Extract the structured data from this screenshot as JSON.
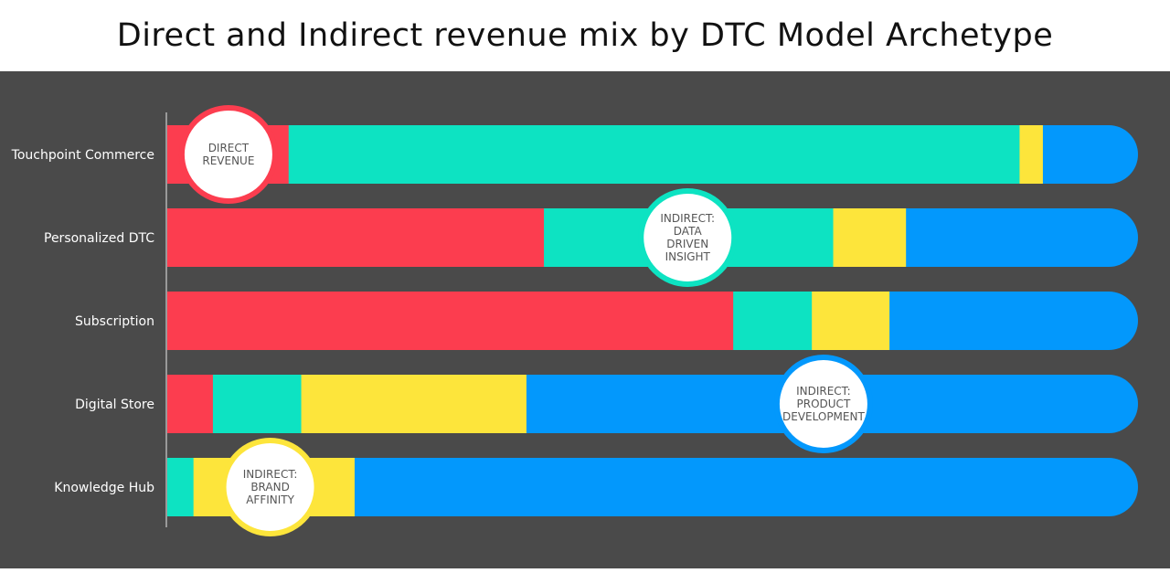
{
  "chart_data": {
    "type": "bar",
    "orientation": "horizontal",
    "stacked": true,
    "title": "Direct and Indirect revenue mix by DTC Model Archetype",
    "categories": [
      "Touchpoint Commerce",
      "Personalized DTC",
      "Subscription",
      "Digital Store",
      "Knowledge Hub"
    ],
    "series": [
      {
        "color": "#fc3d4f",
        "values": [
          12.5,
          38.8,
          58.3,
          4.7,
          0
        ]
      },
      {
        "color": "#0de3c2",
        "values": [
          75.3,
          29.8,
          8.1,
          9.1,
          2.7
        ]
      },
      {
        "color": "#fde53b",
        "values": [
          2.4,
          7.5,
          8.0,
          23.2,
          16.6
        ]
      },
      {
        "color": "#0398fc",
        "values": [
          9.8,
          23.9,
          25.6,
          63.0,
          80.7
        ]
      }
    ],
    "xlim": [
      0,
      100
    ],
    "grid": false,
    "legend": "none",
    "background": "#4a4a4a",
    "callouts": [
      {
        "text": "DIRECT\nREVENUE",
        "series": 0,
        "category": 0,
        "position": 6.3,
        "color": "#fc3d4f"
      },
      {
        "text": "INDIRECT:\nDATA\nDRIVEN\nINSIGHT",
        "series": 1,
        "category": 1,
        "position": 53.6,
        "color": "#0de3c2"
      },
      {
        "text": "INDIRECT:\nPRODUCT\nDEVELOPMENT",
        "series": 3,
        "category": 3,
        "position": 67.6,
        "color": "#0398fc"
      },
      {
        "text": "INDIRECT:\nBRAND\nAFFINITY",
        "series": 2,
        "category": 4,
        "position": 10.6,
        "color": "#fde53b"
      }
    ]
  }
}
